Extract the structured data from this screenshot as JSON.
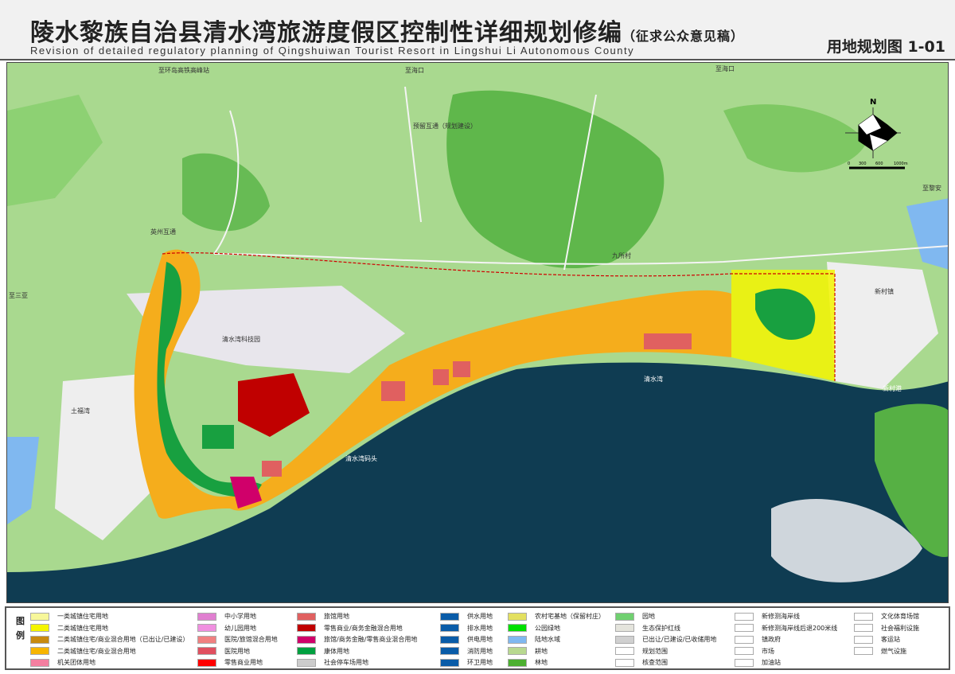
{
  "header": {
    "title": "陵水黎族自治县清水湾旅游度假区控制性详细规划修编",
    "title_note": "（征求公众意见稿）",
    "subtitle": "Revision of detailed regulatory planning of Qingshuiwan Tourist Resort  in Lingshui Li Autonomous County",
    "sheet": "用地规划图  1-01"
  },
  "compass": {
    "north": "N",
    "scale_ticks": [
      "0",
      "300",
      "600",
      "1000m"
    ]
  },
  "map_labels": [
    "至环岛高铁高峰站",
    "至海口",
    "至海口",
    "预留互通（规划建设）",
    "英州互通",
    "清水湾码头",
    "新村港",
    "至黎安",
    "清水湾科技园",
    "土福湾",
    "清水湾",
    "新村镇",
    "至三亚",
    "九所村"
  ],
  "legend": {
    "heading": [
      "图",
      "例"
    ],
    "colors": {
      "residential1": "#f7f79a",
      "residential2": "#f5f500",
      "mixed_built": "#c88a10",
      "mixed": "#f7b500",
      "institution": "#f47fa0",
      "school": "#e07fd0",
      "kindergarten": "#f090e0",
      "hospital_mix": "#f08080",
      "hospital": "#e05060",
      "retail": "#ff0000",
      "hotel": "#e06060",
      "retail_finance": "#c00000",
      "hotel_finance": "#d0006a",
      "sport": "#00a040",
      "parking": "#cccccc",
      "utility": "#0a5ca8",
      "village": "#e3e060",
      "park": "#00e000",
      "water": "#80b8f0",
      "farmland": "#b8d890",
      "forest": "#4cb030",
      "garden": "#70d070",
      "sea": "#0f3c52",
      "land": "#a8d890"
    },
    "items": [
      {
        "label": "一类城镇住宅用地",
        "color": "#f7f79a"
      },
      {
        "label": "二类城镇住宅用地",
        "color": "#f5f500"
      },
      {
        "label": "二类城镇住宅/商业混合用地（已出让/已建设）",
        "color": "#c88a10"
      },
      {
        "label": "二类城镇住宅/商业混合用地",
        "color": "#f7b500"
      },
      {
        "label": "机关团体用地",
        "color": "#f47fa0"
      },
      {
        "label": "中小学用地",
        "color": "#e07fd0"
      },
      {
        "label": "幼儿园用地",
        "color": "#f090e0"
      },
      {
        "label": "医院/旅馆混合用地",
        "color": "#f08080"
      },
      {
        "label": "医院用地",
        "color": "#e05060"
      },
      {
        "label": "零售商业用地",
        "color": "#ff0000"
      },
      {
        "label": "旅馆用地",
        "color": "#e06060"
      },
      {
        "label": "零售商业/商务金融混合用地",
        "color": "#c00000"
      },
      {
        "label": "旅馆/商务金融/零售商业混合用地",
        "color": "#d0006a"
      },
      {
        "label": "康体用地",
        "color": "#00a040"
      },
      {
        "label": "社会停车场用地",
        "color": "#cccccc"
      },
      {
        "label": "供水用地",
        "color": "#0a5ca8"
      },
      {
        "label": "排水用地",
        "color": "#0a5ca8"
      },
      {
        "label": "供电用地",
        "color": "#0a5ca8"
      },
      {
        "label": "消防用地",
        "color": "#0a5ca8"
      },
      {
        "label": "环卫用地",
        "color": "#0a5ca8"
      },
      {
        "label": "农村宅基地（保留村庄）",
        "color": "#e3e060"
      },
      {
        "label": "公园绿地",
        "color": "#00e000"
      },
      {
        "label": "陆地水域",
        "color": "#80b8f0"
      },
      {
        "label": "耕地",
        "color": "#b8d890"
      },
      {
        "label": "林地",
        "color": "#4cb030"
      },
      {
        "label": "园地",
        "color": "#70d070"
      },
      {
        "label": "生态保护红线",
        "color": "#e4e4dc"
      },
      {
        "label": "已出让/已建设/已收储用地",
        "color": "#d0d0d0"
      },
      {
        "label": "规划范围",
        "color": "#ffffff"
      },
      {
        "label": "核查范围",
        "color": "#ffffff"
      },
      {
        "label": "新修测海岸线",
        "color": "#ffffff"
      },
      {
        "label": "新修测海岸线后退200米线",
        "color": "#ffffff"
      },
      {
        "label": "镇政府",
        "color": "#ffffff"
      },
      {
        "label": "市场",
        "color": "#ffffff"
      },
      {
        "label": "加油站",
        "color": "#ffffff"
      },
      {
        "label": "文化体育场馆",
        "color": "#ffffff"
      },
      {
        "label": "社会福利设施",
        "color": "#ffffff"
      },
      {
        "label": "客运站",
        "color": "#ffffff"
      },
      {
        "label": "燃气设施",
        "color": "#ffffff"
      }
    ]
  }
}
